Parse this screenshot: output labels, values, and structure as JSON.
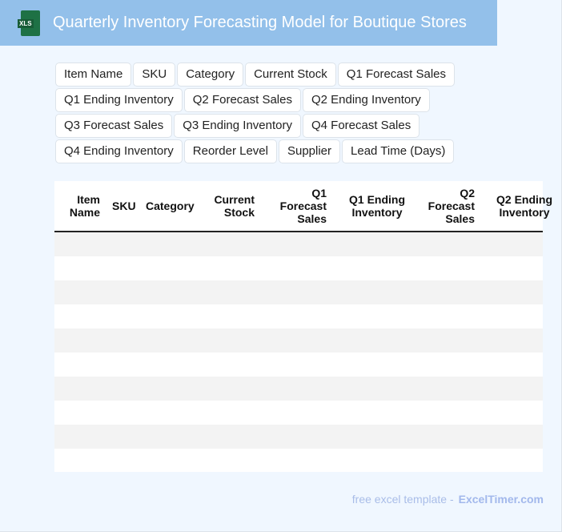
{
  "header": {
    "title": "Quarterly Inventory Forecasting Model for Boutique Stores",
    "logo_text": "XLS"
  },
  "chips": [
    "Item Name",
    "SKU",
    "Category",
    "Current Stock",
    "Q1 Forecast Sales",
    "Q1 Ending Inventory",
    "Q2 Forecast Sales",
    "Q2 Ending Inventory",
    "Q3 Forecast Sales",
    "Q3 Ending Inventory",
    "Q4 Forecast Sales",
    "Q4 Ending Inventory",
    "Reorder Level",
    "Supplier",
    "Lead Time (Days)"
  ],
  "table": {
    "columns": [
      "Item\nName",
      "SKU",
      "Category",
      "Current\nStock",
      "Q1\nForecast\nSales",
      "Q1 Ending\nInventory",
      "Q2\nForecast\nSales",
      "Q2 Ending\nInventory"
    ],
    "rows": 10
  },
  "footer": {
    "text": "free excel template -",
    "brand": "ExcelTimer.com"
  },
  "colors": {
    "header_bg": "#93c0ea",
    "page_bg": "#f0f7ff",
    "excel_green": "#1e7145"
  }
}
